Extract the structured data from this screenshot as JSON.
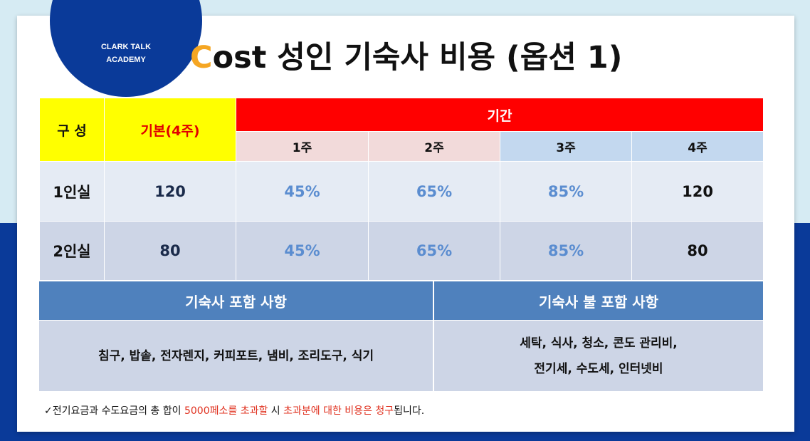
{
  "logo": {
    "text": "CLARK TALK\nACADEMY"
  },
  "title": {
    "first_letter": "C",
    "rest": "ost 성인 기숙사 비용 (옵션 1)"
  },
  "table": {
    "header_composition": "구 성",
    "header_base": "기본(4주)",
    "header_period": "기간",
    "weeks": [
      "1주",
      "2주",
      "3주",
      "4주"
    ],
    "rows": [
      {
        "label": "1인실",
        "base": "120",
        "values": [
          "45%",
          "65%",
          "85%",
          "120"
        ]
      },
      {
        "label": "2인실",
        "base": "80",
        "values": [
          "45%",
          "65%",
          "85%",
          "80"
        ]
      }
    ]
  },
  "included": {
    "title": "기숙사 포함 사항",
    "items": "침구, 밥솥, 전자렌지, 커피포트, 냄비, 조리도구, 식기"
  },
  "excluded": {
    "title": "기숙사 불 포함 사항",
    "line1": "세탁, 식사, 청소, 콘도 관리비,",
    "line2": "전기세, 수도세, 인터넷비"
  },
  "note": {
    "check": "✓",
    "part1": "전기요금과 수도요금의 총 합이 ",
    "part2": "5000페소를 초과할",
    "part3": " 시 ",
    "part4": "초과분에 대한 비용은 청구",
    "part5": "됩니다."
  },
  "colors": {
    "brand_blue": "#0a3a99",
    "title_accent": "#f5a623",
    "header_yellow": "#ffff00",
    "header_red": "#ff0000",
    "section_blue": "#4f81bd",
    "percent_blue": "#5b8dd0",
    "note_red": "#e0301e"
  }
}
